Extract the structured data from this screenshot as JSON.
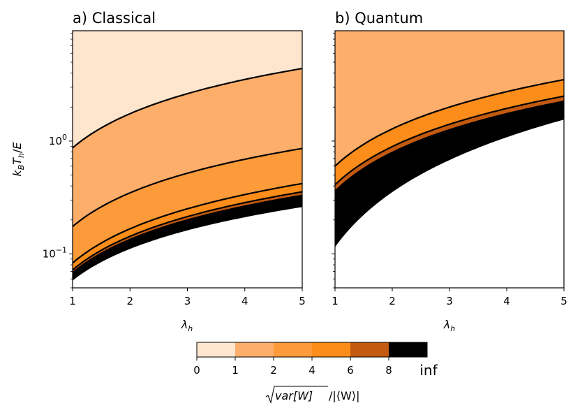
{
  "colors": {
    "band_0_1": "#fee6ce",
    "band_1_2": "#fdae6b",
    "band_2_4": "#fd9a3a",
    "band_4_6": "#fd8d1a",
    "band_6_8": "#c25a0f",
    "band_8_inf": "#000000",
    "undefined_region": "#ffffff",
    "boundary_line": "#000000"
  },
  "chart_data": [
    {
      "type": "contourf",
      "title": "a) Classical",
      "xlabel": "λ_h",
      "ylabel": "k_B T_h / E",
      "xlim": [
        1,
        5
      ],
      "ylim": [
        0.05,
        9.5
      ],
      "yscale": "log",
      "x_ticks": [
        "1",
        "2",
        "3",
        "4",
        "5"
      ],
      "y_ticks": [
        {
          "value": 1,
          "base": "10",
          "exp": "0"
        },
        {
          "value": 0.1,
          "base": "10",
          "exp": "−1"
        }
      ],
      "boundaries": [
        {
          "level": 1,
          "x": [
            1,
            5
          ],
          "y": [
            0.87,
            4.4
          ]
        },
        {
          "level": 2,
          "x": [
            1,
            5
          ],
          "y": [
            0.175,
            0.86
          ]
        },
        {
          "level": 4,
          "x": [
            1,
            5
          ],
          "y": [
            0.083,
            0.42
          ]
        },
        {
          "level": 6,
          "x": [
            1,
            5
          ],
          "y": [
            0.072,
            0.355
          ]
        },
        {
          "level": 8,
          "x": [
            1,
            5
          ],
          "y": [
            0.068,
            0.33
          ]
        },
        {
          "level": "inf",
          "x": [
            1,
            5
          ],
          "y": [
            0.058,
            0.26
          ]
        }
      ]
    },
    {
      "type": "contourf",
      "title": "b) Quantum",
      "xlabel": "λ_h",
      "ylabel": "",
      "xlim": [
        1,
        5
      ],
      "ylim": [
        0.05,
        9.5
      ],
      "yscale": "log",
      "x_ticks": [
        "1",
        "2",
        "3",
        "4",
        "5"
      ],
      "top_band_level": 2,
      "boundaries": [
        {
          "level": 4,
          "x": [
            1,
            5
          ],
          "y": [
            0.6,
            3.5
          ]
        },
        {
          "level": 6,
          "x": [
            1,
            5
          ],
          "y": [
            0.41,
            2.5
          ]
        },
        {
          "level": 8,
          "x": [
            1,
            5
          ],
          "y": [
            0.36,
            2.25
          ]
        },
        {
          "level": "inf",
          "x": [
            1,
            5
          ],
          "y": [
            0.115,
            1.55
          ]
        }
      ]
    }
  ],
  "colorbar": {
    "label": "√var[W] / |⟨W⟩|",
    "label_main": "var[W]",
    "label_rest": "/|⟨W⟩|",
    "tick_labels": [
      "0",
      "1",
      "2",
      "4",
      "6",
      "8",
      "inf"
    ]
  }
}
